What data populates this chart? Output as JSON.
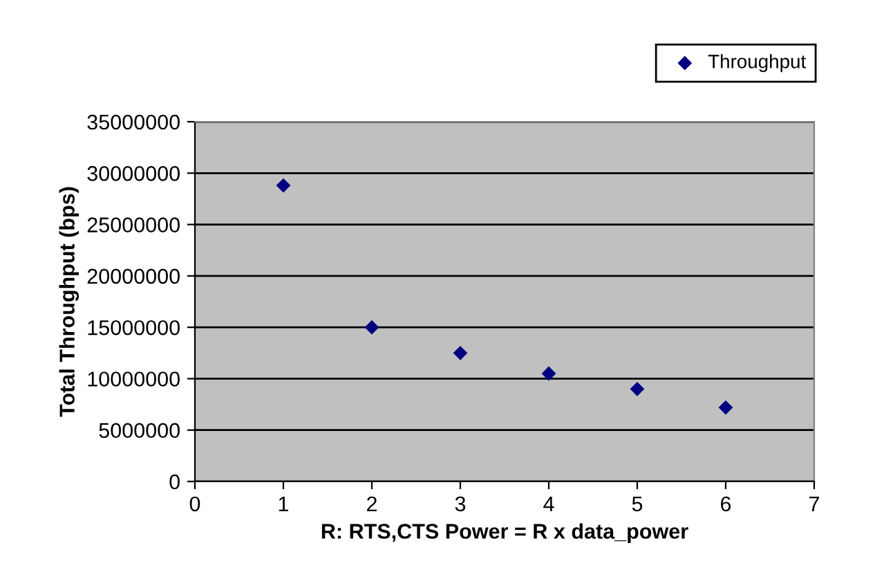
{
  "chart_data": {
    "type": "scatter",
    "xlabel": "R: RTS,CTS Power = R x data_power",
    "ylabel": "Total Throughput (bps)",
    "x": [
      1,
      2,
      3,
      4,
      5,
      6
    ],
    "series": [
      {
        "name": "Throughput",
        "color": "#000080",
        "values": [
          28800000,
          15000000,
          12500000,
          10500000,
          9000000,
          7200000
        ]
      }
    ],
    "xlim": [
      0,
      7
    ],
    "xticks": [
      0,
      1,
      2,
      3,
      4,
      5,
      6,
      7
    ],
    "ylim": [
      0,
      35000000
    ],
    "yticks": [
      0,
      5000000,
      10000000,
      15000000,
      20000000,
      25000000,
      30000000,
      35000000
    ],
    "grid": "y",
    "legend": "top right",
    "marker": "diamond"
  }
}
